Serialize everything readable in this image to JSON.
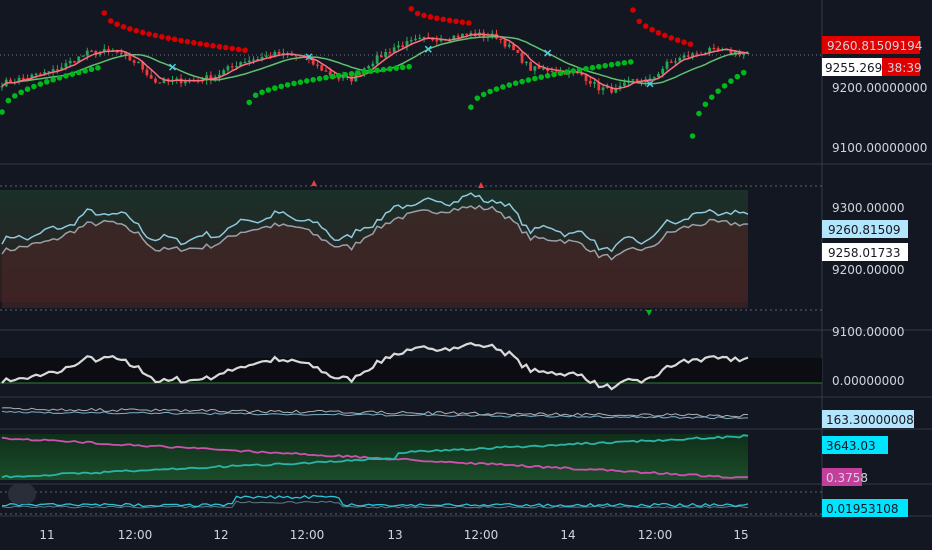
{
  "chart_data": [
    {
      "type": "candlestick",
      "pane": "price",
      "ylim": [
        9080,
        9340
      ],
      "y_ticks": [
        9100,
        9200
      ],
      "y_tick_labels": [
        "9100.00000000",
        "9200.00000000"
      ],
      "last_value_label": "9260.81509194",
      "current_price_label": "9255.269",
      "countdown": "38:39"
    },
    {
      "type": "line",
      "pane": "price-line",
      "ylim": [
        9080,
        9340
      ],
      "y_tick_labels": [
        "9300.00000",
        "9200.00000",
        "9100.00000"
      ],
      "last_value_labels": [
        "9260.81509",
        "9258.01733"
      ]
    },
    {
      "type": "line",
      "pane": "oscillator",
      "y_tick_labels": [
        "0.00000000"
      ]
    },
    {
      "type": "line",
      "pane": "indicator-a",
      "last_value_label": "163.30000008"
    },
    {
      "type": "line",
      "pane": "indicator-b",
      "last_value_labels": [
        "3643.03",
        "0.3758"
      ]
    },
    {
      "type": "line",
      "pane": "indicator-c",
      "last_value_labels": [
        "0.01953108"
      ]
    }
  ],
  "x_axis": {
    "labels": [
      "11",
      "12:00",
      "12",
      "12:00",
      "13",
      "12:00",
      "14",
      "12:00",
      "15"
    ]
  },
  "colors": {
    "background": "#131722",
    "up": "#26a65b",
    "down": "#ef3b3b",
    "sar_red": "#d50000",
    "sar_green": "#00b81c",
    "ma_red": "#ff6e7f",
    "ma_green": "#5ec16e",
    "cross": "#4dd0e1",
    "line_light": "#8ec9dd",
    "line_grey": "#9aa0a6",
    "magenta": "#d050b0",
    "teal": "#2ab3a6",
    "cyan_tag": "#00e5ff",
    "lightblue_tag": "#b3e5fc",
    "magenta_tag": "#c2409a",
    "red_tag": "#e00000"
  }
}
